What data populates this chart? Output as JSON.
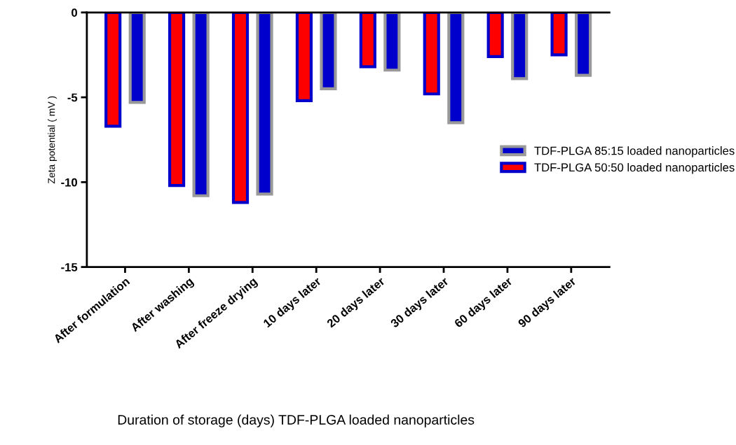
{
  "chart_data": {
    "type": "bar",
    "ylabel": "Zeta potential ( mV )",
    "xlabel": "Duration of storage (days) TDF-PLGA loaded nanoparticles",
    "categories": [
      "After formulation",
      "After washing",
      "After freeze drying",
      "10 days later",
      "20 days later",
      "30 days later",
      "60 days later",
      "90 days later"
    ],
    "series": [
      {
        "name": "TDF-PLGA 50:50 loaded nanoparticles",
        "color": "#ff0000",
        "values": [
          -6.7,
          -10.2,
          -11.2,
          -5.2,
          -3.2,
          -4.8,
          -2.6,
          -2.5
        ]
      },
      {
        "name": "TDF-PLGA 85:15 loaded nanoparticles",
        "color": "#0000cc",
        "values": [
          -5.3,
          -10.8,
          -10.7,
          -4.5,
          -3.4,
          -6.5,
          -3.9,
          -3.7
        ]
      }
    ],
    "ylim": [
      -15,
      0
    ],
    "yticks": [
      -15,
      -10,
      -5,
      0
    ],
    "grid": false,
    "legend": "right"
  }
}
